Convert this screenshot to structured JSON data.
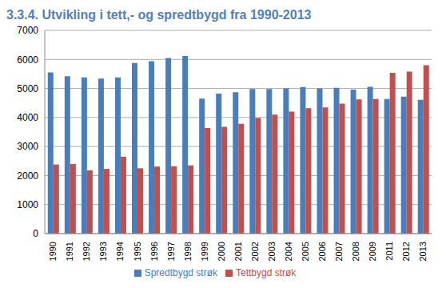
{
  "chart_data": {
    "type": "bar",
    "title": "3.3.4. Utvikling i tett,- og spredtbygd fra 1990-2013",
    "categories": [
      "1990",
      "1991",
      "1992",
      "1993",
      "1994",
      "1995",
      "1996",
      "1997",
      "1998",
      "1999",
      "2000",
      "2001",
      "2002",
      "2003",
      "2004",
      "2005",
      "2006",
      "2007",
      "2008",
      "2009",
      "2011",
      "2012",
      "2013"
    ],
    "series": [
      {
        "name": "Spredtbygd strøk",
        "color": "#4a7ebb",
        "values": [
          5550,
          5420,
          5380,
          5340,
          5380,
          5880,
          5940,
          6050,
          6120,
          4650,
          4820,
          4870,
          4980,
          4980,
          5000,
          5050,
          5000,
          5020,
          4960,
          5060,
          4640,
          4720,
          4610
        ]
      },
      {
        "name": "Tettbygd strøk",
        "color": "#c0504d",
        "values": [
          2380,
          2400,
          2180,
          2230,
          2650,
          2250,
          2310,
          2320,
          2350,
          3640,
          3680,
          3780,
          3980,
          4100,
          4200,
          4320,
          4350,
          4480,
          4620,
          4640,
          5540,
          5580,
          5800
        ]
      }
    ],
    "ylim": [
      0,
      7000
    ],
    "yticks": [
      0,
      1000,
      2000,
      3000,
      4000,
      5000,
      6000,
      7000
    ],
    "grid": true,
    "legend": "bottom"
  }
}
